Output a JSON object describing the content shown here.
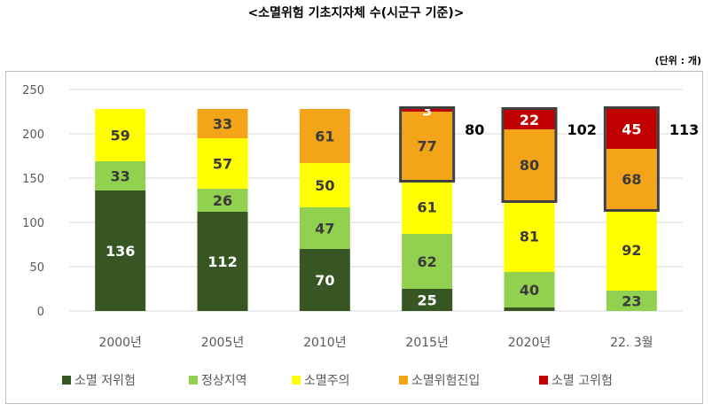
{
  "title": "<소멸위험 기초지자체 수(시군구 기준)>",
  "unit": "(단위 : 개)",
  "colors": {
    "gridline": "#d9d9d9",
    "axis_text": "#595959",
    "box_border": "#404040",
    "extinction_low": "#375623",
    "normal": "#92d050",
    "caution": "#ffff00",
    "entering": "#f4a418",
    "high_risk": "#c00000"
  },
  "chart_data": {
    "type": "bar",
    "stacked": true,
    "categories": [
      "2000년",
      "2005년",
      "2010년",
      "2015년",
      "2020년",
      "22. 3월"
    ],
    "ylim": [
      0,
      250
    ],
    "yticks": [
      0,
      50,
      100,
      150,
      200,
      250
    ],
    "grid": true,
    "legend_position": "bottom",
    "series": [
      {
        "name": "소멸 저위험",
        "color_key": "extinction_low",
        "values": [
          136,
          112,
          70,
          25,
          4,
          0
        ],
        "labels": [
          "136",
          "112",
          "70",
          "25",
          "",
          ""
        ]
      },
      {
        "name": "정상지역",
        "color_key": "normal",
        "values": [
          33,
          26,
          47,
          62,
          40,
          23
        ],
        "labels": [
          "33",
          "26",
          "47",
          "62",
          "40",
          "23"
        ]
      },
      {
        "name": "소멸주의",
        "color_key": "caution",
        "values": [
          59,
          57,
          50,
          61,
          81,
          92
        ],
        "labels": [
          "59",
          "57",
          "50",
          "61",
          "81",
          "92"
        ]
      },
      {
        "name": "소멸위험진입",
        "color_key": "entering",
        "values": [
          0,
          33,
          61,
          77,
          80,
          68
        ],
        "labels": [
          "",
          "33",
          "61",
          "77",
          "80",
          "68"
        ]
      },
      {
        "name": "소멸 고위험",
        "color_key": "high_risk",
        "values": [
          0,
          0,
          0,
          3,
          22,
          45
        ],
        "labels": [
          "",
          "",
          "",
          "3",
          "22",
          "45"
        ]
      }
    ],
    "risk_totals": [
      {
        "category_index": 3,
        "label": "80"
      },
      {
        "category_index": 4,
        "label": "102"
      },
      {
        "category_index": 5,
        "label": "113"
      }
    ]
  }
}
